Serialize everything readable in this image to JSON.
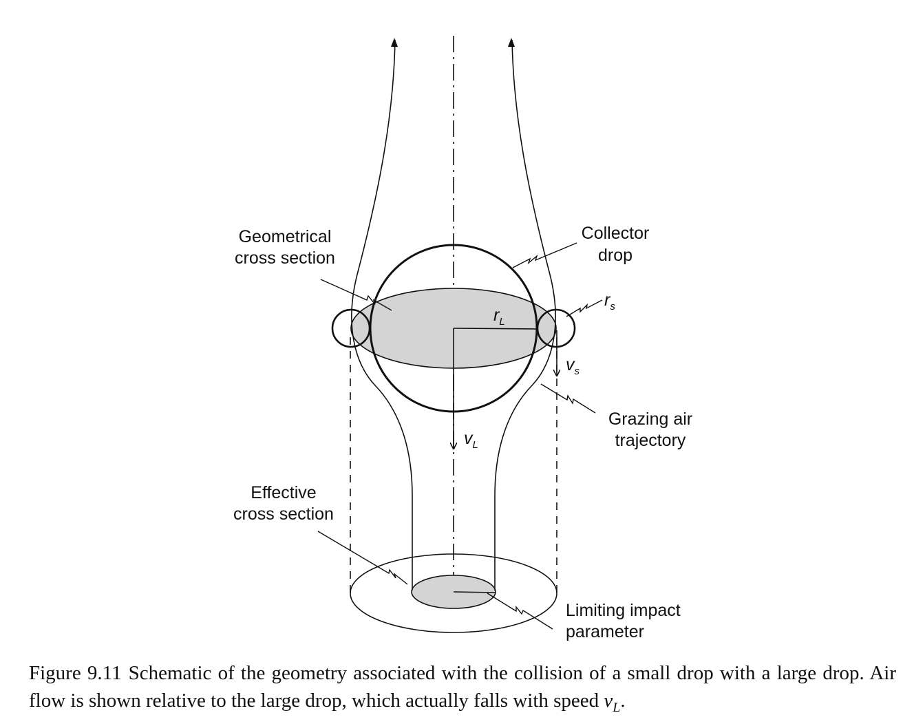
{
  "labels": {
    "geometrical_line1": "Geometrical",
    "geometrical_line2": "cross section",
    "collector_line1": "Collector",
    "collector_line2": "drop",
    "grazing_line1": "Grazing air",
    "grazing_line2": "trajectory",
    "effective_line1": "Effective",
    "effective_line2": "cross section",
    "limiting_line1": "Limiting impact",
    "limiting_line2": "parameter"
  },
  "symbols": {
    "rL_main": "r",
    "rL_sub": "L",
    "rs_main": "r",
    "rs_sub": "s",
    "vL_main": "v",
    "vL_sub": "L",
    "vs_main": "v",
    "vs_sub": "s"
  },
  "caption": {
    "number": "Figure 9.11",
    "text": "Schematic of the geometry associated with the collision of a small drop with a large drop. Air flow is shown relative to the large drop, which actually falls with speed",
    "var_main": "v",
    "var_sub": "L",
    "end": "."
  },
  "colors": {
    "line": "#111111",
    "shaded": "#d4d4d4"
  }
}
